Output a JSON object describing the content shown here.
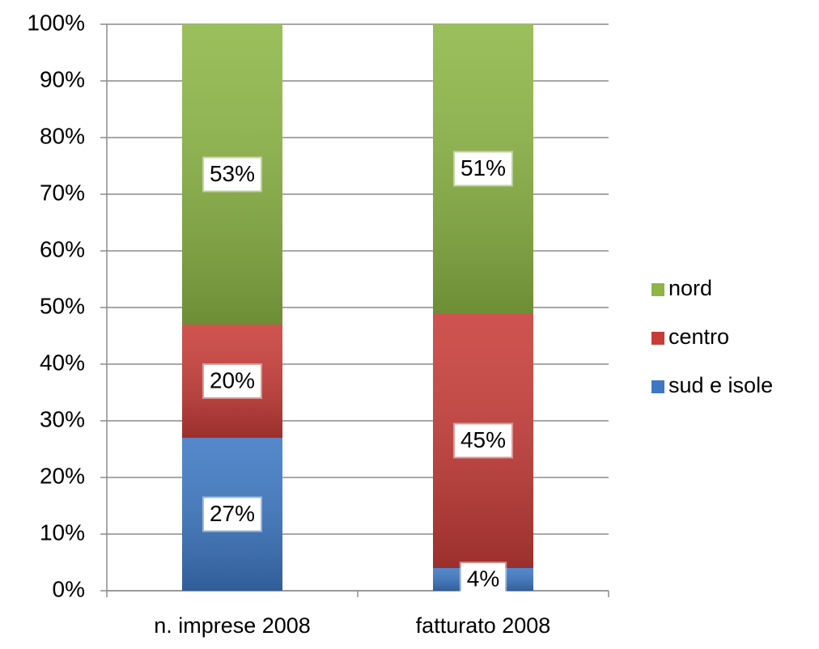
{
  "chart_data": {
    "type": "stacked_bar",
    "categories": [
      "n. imprese 2008",
      "fatturato 2008"
    ],
    "series": [
      {
        "name": "sud e isole",
        "color": "#3d78c4",
        "values": [
          27,
          4
        ],
        "value_labels": [
          "27%",
          "4%"
        ]
      },
      {
        "name": "centro",
        "color": "#c83c38",
        "values": [
          20,
          45
        ],
        "value_labels": [
          "20%",
          "45%"
        ]
      },
      {
        "name": "nord",
        "color": "#8db645",
        "values": [
          53,
          51
        ],
        "value_labels": [
          "53%",
          "51%"
        ]
      }
    ],
    "ylim": [
      0,
      100
    ],
    "yticks": [
      {
        "value": 0,
        "label": "0%"
      },
      {
        "value": 10,
        "label": "10%"
      },
      {
        "value": 20,
        "label": "20%"
      },
      {
        "value": 30,
        "label": "30%"
      },
      {
        "value": 40,
        "label": "40%"
      },
      {
        "value": 50,
        "label": "50%"
      },
      {
        "value": 60,
        "label": "60%"
      },
      {
        "value": 70,
        "label": "70%"
      },
      {
        "value": 80,
        "label": "80%"
      },
      {
        "value": 90,
        "label": "90%"
      },
      {
        "value": 100,
        "label": "100%"
      }
    ],
    "grid": true,
    "legend": "right"
  }
}
